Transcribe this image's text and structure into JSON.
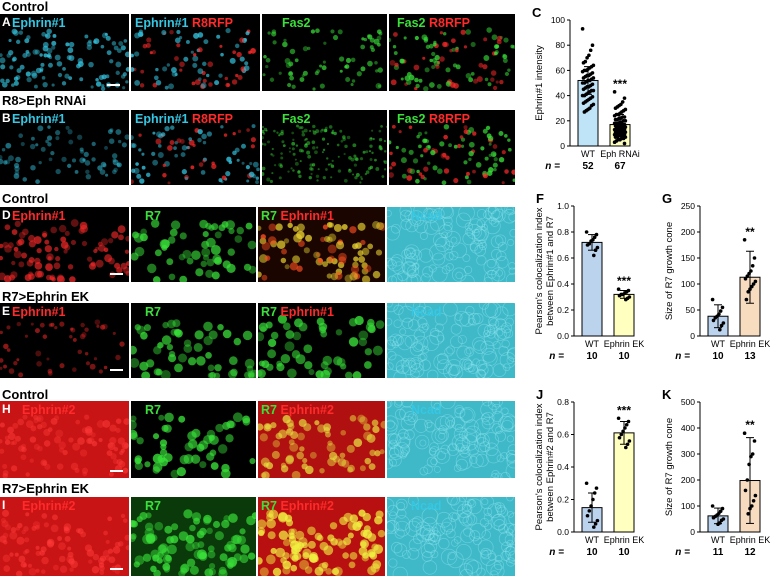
{
  "rows": {
    "r1_title": "Control",
    "r2_title": "R8>Eph RNAi",
    "r3_title": "Control",
    "r4_title": "R7>Ephrin EK",
    "r5_title": "Control",
    "r6_title": "R7>Ephrin EK"
  },
  "panels": {
    "A": {
      "letter": "A",
      "p1": "Ephrin#1",
      "p2a": "Ephrin#1",
      "p2b": "R8RFP",
      "p3": "Fas2",
      "p4a": "Fas2",
      "p4b": "R8RFP"
    },
    "B": {
      "letter": "B",
      "p1": "Ephrin#1",
      "p2a": "Ephrin#1",
      "p2b": "R8RFP",
      "p3": "Fas2",
      "p4a": "Fas2",
      "p4b": "R8RFP"
    },
    "D": {
      "letter": "D",
      "p1": "Ephrin#1",
      "p2": "R7",
      "p3a": "R7",
      "p3b": "Ephrin#1",
      "p4": "Ncad"
    },
    "E": {
      "letter": "E",
      "p1": "Ephrin#1",
      "p2": "R7",
      "p3a": "R7",
      "p3b": "Ephrin#1",
      "p4": "Ncad"
    },
    "H": {
      "letter": "H",
      "p1": "Ephrin#2",
      "p2": "R7",
      "p3a": "R7",
      "p3b": "Ephrin#2",
      "p4": "Ncad"
    },
    "I": {
      "letter": "I",
      "p1": "Ephrin#2",
      "p2": "R7",
      "p3a": "R7",
      "p3b": "Ephrin#2",
      "p4": "Ncad"
    }
  },
  "colors": {
    "cyan": "#35c7e3",
    "red": "#ff2a2a",
    "green": "#39e039",
    "wt_bar": "#bfe3f7",
    "wt_bar2": "#bcd3ee",
    "mut_bar": "#ffffc0",
    "mut_bar2": "#f8dcc0"
  },
  "chart_data": [
    {
      "id": "C",
      "letter": "C",
      "type": "bar",
      "ylabel": "Ephrin#1 intensity",
      "ylim": [
        0,
        100
      ],
      "yticks": [
        0,
        20,
        40,
        60,
        80,
        100
      ],
      "categories": [
        "WT",
        "Eph RNAi"
      ],
      "values": [
        52,
        17
      ],
      "error": [
        11,
        8
      ],
      "n_label": "n =",
      "n": [
        "52",
        "67"
      ],
      "significance": [
        "",
        "***"
      ],
      "points": [
        [
          93,
          80,
          76,
          72,
          70,
          67,
          66,
          64,
          63,
          62,
          61,
          60,
          60,
          59,
          58,
          57,
          56,
          56,
          55,
          54,
          54,
          53,
          52,
          52,
          51,
          50,
          50,
          49,
          48,
          47,
          47,
          46,
          45,
          44,
          44,
          43,
          42,
          41,
          40,
          40,
          39,
          38,
          37,
          36,
          35,
          34,
          33,
          32,
          30,
          29,
          28,
          27
        ],
        [
          43,
          38,
          35,
          33,
          32,
          31,
          30,
          29,
          28,
          27,
          26,
          25,
          25,
          24,
          23,
          23,
          22,
          22,
          21,
          21,
          20,
          20,
          19,
          19,
          18,
          18,
          18,
          17,
          17,
          17,
          16,
          16,
          16,
          15,
          15,
          15,
          14,
          14,
          14,
          13,
          13,
          13,
          12,
          12,
          12,
          11,
          11,
          11,
          10,
          10,
          10,
          9,
          9,
          9,
          8,
          8,
          8,
          7,
          7,
          7,
          6,
          6,
          5,
          5,
          4,
          3,
          2
        ]
      ]
    },
    {
      "id": "F",
      "letter": "F",
      "type": "bar",
      "ylabel": "Pearson's colocalization index",
      "ylabel2": "between Ephrin#1 and R7",
      "ylim": [
        0,
        1.0
      ],
      "yticks": [
        0.0,
        0.2,
        0.4,
        0.6,
        0.8,
        1.0
      ],
      "categories": [
        "WT",
        "Ephrin EK"
      ],
      "values": [
        0.72,
        0.32
      ],
      "error": [
        0.06,
        0.03
      ],
      "n_label": "n =",
      "n": [
        "10",
        "10"
      ],
      "significance": [
        "",
        "***"
      ],
      "points": [
        [
          0.8,
          0.78,
          0.76,
          0.74,
          0.73,
          0.71,
          0.7,
          0.68,
          0.66,
          0.62
        ],
        [
          0.36,
          0.35,
          0.34,
          0.33,
          0.32,
          0.32,
          0.31,
          0.3,
          0.29,
          0.28
        ]
      ]
    },
    {
      "id": "G",
      "letter": "G",
      "type": "bar",
      "ylabel": "Size of R7 growth cone",
      "ylim": [
        0,
        250
      ],
      "yticks": [
        0,
        50,
        100,
        150,
        200,
        250
      ],
      "categories": [
        "WT",
        "Ephrin EK"
      ],
      "values": [
        38,
        113
      ],
      "error": [
        22,
        50
      ],
      "n_label": "n =",
      "n": [
        "10",
        "13"
      ],
      "significance": [
        "",
        "**"
      ],
      "points": [
        [
          70,
          55,
          48,
          42,
          38,
          35,
          30,
          25,
          20,
          12
        ],
        [
          185,
          150,
          135,
          125,
          120,
          115,
          110,
          105,
          100,
          95,
          90,
          85,
          70
        ]
      ]
    },
    {
      "id": "J",
      "letter": "J",
      "type": "bar",
      "ylabel": "Pearson's colocalization index",
      "ylabel2": "between Ephrin#2 and R7",
      "ylim": [
        0,
        0.8
      ],
      "yticks": [
        0.0,
        0.2,
        0.4,
        0.6,
        0.8
      ],
      "categories": [
        "WT",
        "Ephrin EK"
      ],
      "values": [
        0.15,
        0.61
      ],
      "error": [
        0.09,
        0.07
      ],
      "n_label": "n =",
      "n": [
        "10",
        "10"
      ],
      "significance": [
        "",
        "***"
      ],
      "points": [
        [
          0.3,
          0.27,
          0.24,
          0.2,
          0.16,
          0.13,
          0.1,
          0.07,
          0.05,
          0.03
        ],
        [
          0.7,
          0.68,
          0.66,
          0.64,
          0.62,
          0.6,
          0.58,
          0.56,
          0.54,
          0.52
        ]
      ]
    },
    {
      "id": "K",
      "letter": "K",
      "type": "bar",
      "ylabel": "Size of R7 growth cone",
      "ylim": [
        0,
        500
      ],
      "yticks": [
        0,
        100,
        200,
        300,
        400,
        500
      ],
      "categories": [
        "WT",
        "Ephrin EK"
      ],
      "values": [
        62,
        198
      ],
      "error": [
        30,
        165
      ],
      "n_label": "n =",
      "n": [
        "11",
        "12"
      ],
      "significance": [
        "",
        "**"
      ],
      "points": [
        [
          100,
          90,
          80,
          72,
          65,
          60,
          55,
          50,
          45,
          35,
          30
        ],
        [
          380,
          350,
          300,
          290,
          260,
          200,
          160,
          140,
          120,
          100,
          90,
          70
        ]
      ]
    }
  ]
}
